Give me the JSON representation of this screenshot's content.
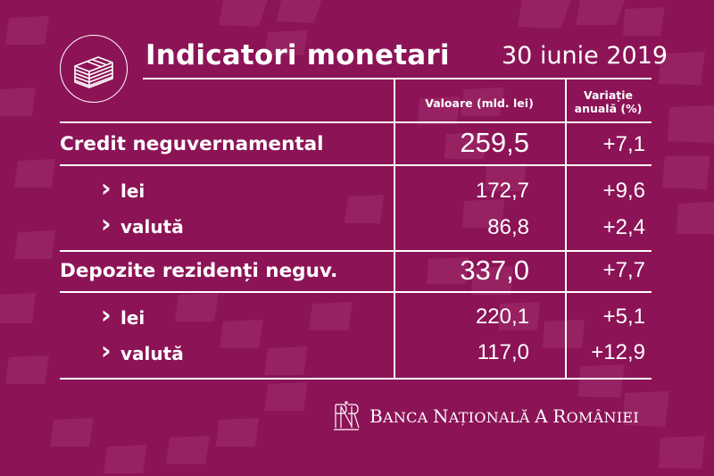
{
  "header": {
    "icon": "money-stack-icon",
    "title": "Indicatori monetari",
    "date": "30 iunie 2019"
  },
  "columns": {
    "value": "Valoare (mld. lei)",
    "variation_line1": "Variație",
    "variation_line2": "anuală (%)"
  },
  "rows": [
    {
      "label": "Credit neguvernamental",
      "value": "259,5",
      "variation": "+7,1"
    },
    {
      "label": "lei",
      "value": "172,7",
      "variation": "+9,6"
    },
    {
      "label": "valută",
      "value": "86,8",
      "variation": "+2,4"
    },
    {
      "label": "Depozite rezidenți neguv.",
      "value": "337,0",
      "variation": "+7,7"
    },
    {
      "label": "lei",
      "value": "220,1",
      "variation": "+5,1"
    },
    {
      "label": "valută",
      "value": "117,0",
      "variation": "+12,9"
    }
  ],
  "sub_marker": "›",
  "footer": {
    "emblem": "bnr-monogram-logo",
    "brand_cap1": "B",
    "brand_rest1": "ANCA ",
    "brand_cap2": "N",
    "brand_rest2": "AȚIONALĂ ",
    "brand_cap3": "A",
    "brand_rest3": " ",
    "brand_cap4": "R",
    "brand_rest4": "OMÂNIEI"
  },
  "colors": {
    "background": "#8c1356",
    "pattern": "#9a2463",
    "text": "#ffffff"
  }
}
